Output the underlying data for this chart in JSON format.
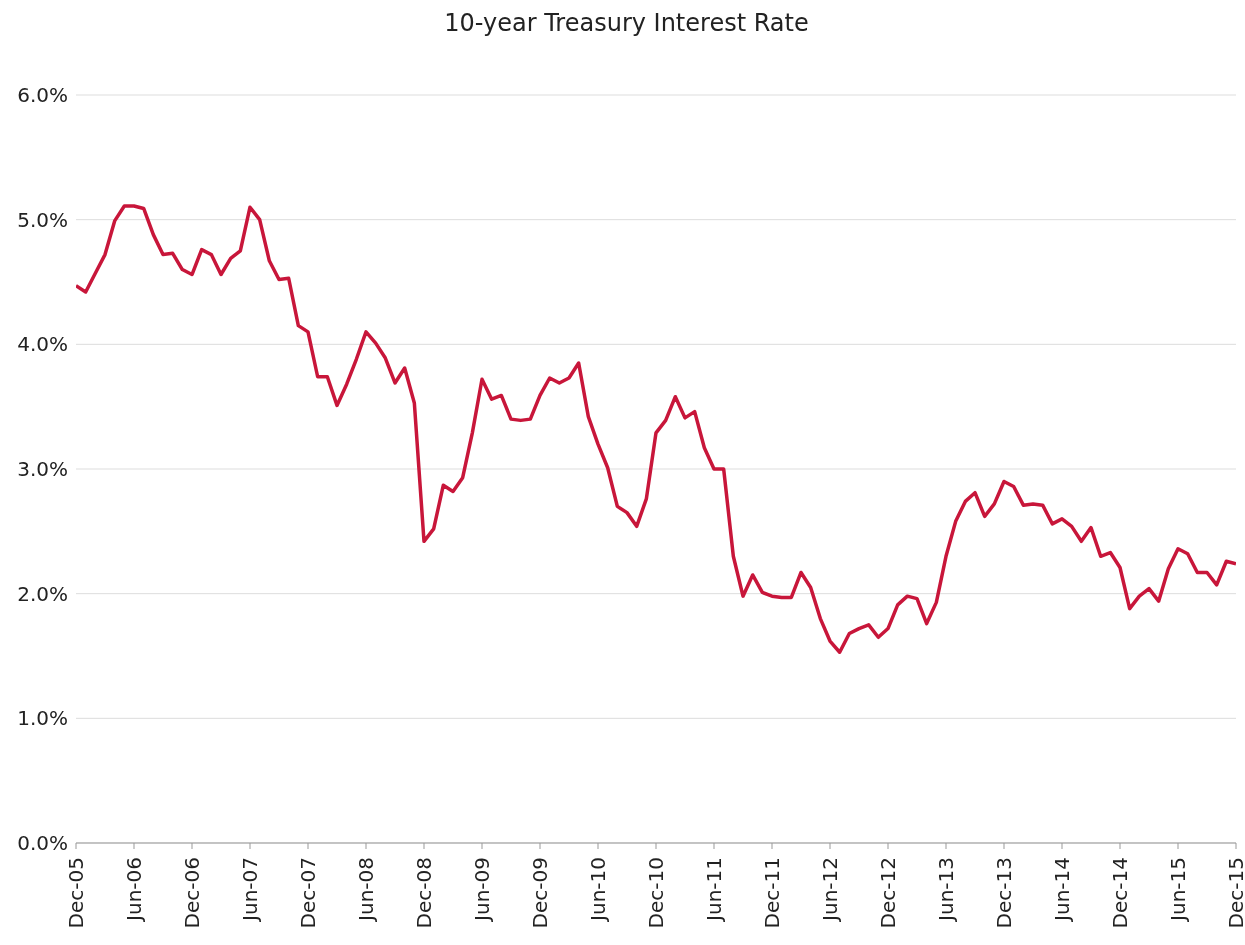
{
  "chart_data": {
    "type": "line",
    "title": "10-year Treasury Interest Rate",
    "categories": [
      "Dec-05",
      null,
      null,
      null,
      null,
      null,
      "Jun-06",
      null,
      null,
      null,
      null,
      null,
      "Dec-06",
      null,
      null,
      null,
      null,
      null,
      "Jun-07",
      null,
      null,
      null,
      null,
      null,
      "Dec-07",
      null,
      null,
      null,
      null,
      null,
      "Jun-08",
      null,
      null,
      null,
      null,
      null,
      "Dec-08",
      null,
      null,
      null,
      null,
      null,
      "Jun-09",
      null,
      null,
      null,
      null,
      null,
      "Dec-09",
      null,
      null,
      null,
      null,
      null,
      "Jun-10",
      null,
      null,
      null,
      null,
      null,
      "Dec-10",
      null,
      null,
      null,
      null,
      null,
      "Jun-11",
      null,
      null,
      null,
      null,
      null,
      "Dec-11",
      null,
      null,
      null,
      null,
      null,
      "Jun-12",
      null,
      null,
      null,
      null,
      null,
      "Dec-12",
      null,
      null,
      null,
      null,
      null,
      "Jun-13",
      null,
      null,
      null,
      null,
      null,
      "Dec-13",
      null,
      null,
      null,
      null,
      null,
      "Jun-14",
      null,
      null,
      null,
      null,
      null,
      "Dec-14",
      null,
      null,
      null,
      null,
      null,
      "Jun-15",
      null,
      null,
      null,
      null,
      null,
      "Dec-15"
    ],
    "series": [
      {
        "color": "#c8163a",
        "values": [
          4.47,
          4.42,
          4.57,
          4.72,
          4.99,
          5.11,
          5.11,
          5.09,
          4.88,
          4.72,
          4.73,
          4.6,
          4.56,
          4.76,
          4.72,
          4.56,
          4.69,
          4.75,
          5.1,
          5.0,
          4.67,
          4.52,
          4.53,
          4.15,
          4.1,
          3.74,
          3.74,
          3.51,
          3.68,
          3.88,
          4.1,
          4.01,
          3.89,
          3.69,
          3.81,
          3.53,
          2.42,
          2.52,
          2.87,
          2.82,
          2.93,
          3.29,
          3.72,
          3.56,
          3.59,
          3.4,
          3.39,
          3.4,
          3.59,
          3.73,
          3.69,
          3.73,
          3.85,
          3.42,
          3.2,
          3.01,
          2.7,
          2.65,
          2.54,
          2.76,
          3.29,
          3.39,
          3.58,
          3.41,
          3.46,
          3.17,
          3.0,
          3.0,
          2.3,
          1.98,
          2.15,
          2.01,
          1.98,
          1.97,
          1.97,
          2.17,
          2.05,
          1.8,
          1.62,
          1.53,
          1.68,
          1.72,
          1.75,
          1.65,
          1.72,
          1.91,
          1.98,
          1.96,
          1.76,
          1.93,
          2.3,
          2.58,
          2.74,
          2.81,
          2.62,
          2.72,
          2.9,
          2.86,
          2.71,
          2.72,
          2.71,
          2.56,
          2.6,
          2.54,
          2.42,
          2.53,
          2.3,
          2.33,
          2.21,
          1.88,
          1.98,
          2.04,
          1.94,
          2.2,
          2.36,
          2.32,
          2.17,
          2.17,
          2.07,
          2.26,
          2.24
        ]
      }
    ],
    "ylim": [
      0,
      6
    ],
    "yticks": [
      {
        "value": 0,
        "label": "0.0%"
      },
      {
        "value": 1,
        "label": "1.0%"
      },
      {
        "value": 2,
        "label": "2.0%"
      },
      {
        "value": 3,
        "label": "3.0%"
      },
      {
        "value": 4,
        "label": "4.0%"
      },
      {
        "value": 5,
        "label": "5.0%"
      },
      {
        "value": 6,
        "label": "6.0%"
      }
    ],
    "grid": "y",
    "legend": false,
    "marker": "none",
    "line_style": "solid"
  }
}
